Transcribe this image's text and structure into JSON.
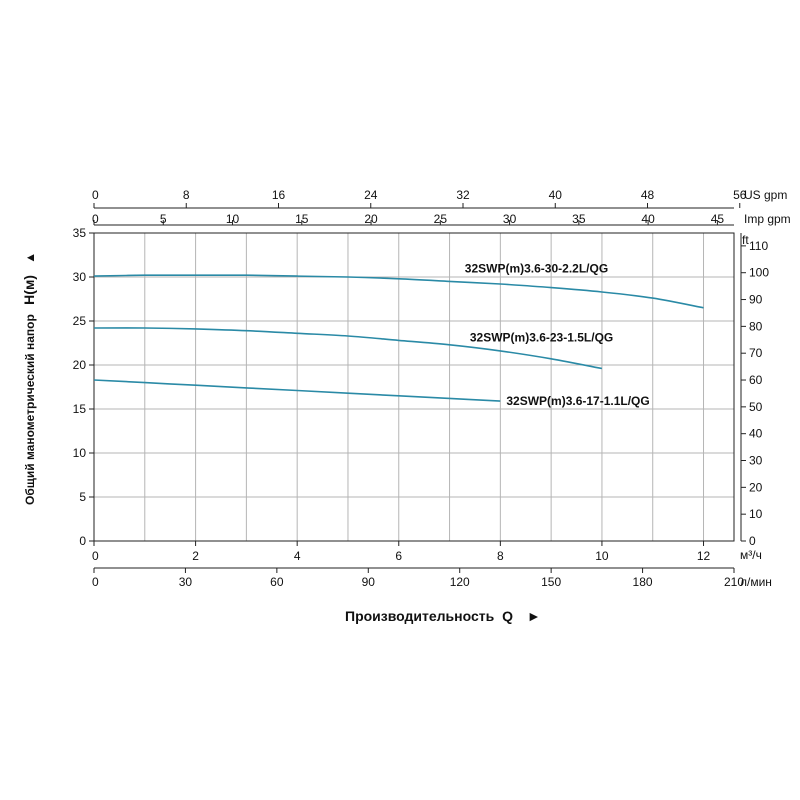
{
  "chart_data": {
    "type": "line",
    "y_axis": {
      "label_prefix": "Общий манометрический напор",
      "label_symbol": "H(м)",
      "arrow": "▲",
      "unit": "м",
      "range": [
        0,
        35
      ],
      "ticks": [
        0,
        5,
        10,
        15,
        20,
        25,
        30,
        35
      ]
    },
    "y_axis_secondary": {
      "unit": "ft",
      "range": [
        0,
        114.8
      ],
      "ticks": [
        0,
        10,
        20,
        30,
        40,
        50,
        60,
        70,
        80,
        90,
        100,
        110
      ]
    },
    "x_axis": {
      "label_prefix": "Производительность",
      "label_symbol": "Q",
      "arrow": "►",
      "unit": "м³/ч",
      "range": [
        0,
        12.6
      ],
      "ticks": [
        0,
        2,
        4,
        6,
        8,
        10,
        12
      ]
    },
    "x_axis_lmin": {
      "unit": "л/мин",
      "range": [
        0,
        210
      ],
      "ticks": [
        0,
        30,
        60,
        90,
        120,
        150,
        180,
        210
      ]
    },
    "x_axis_us_gpm": {
      "unit": "US gpm",
      "range": [
        0,
        55.5
      ],
      "ticks": [
        0,
        8,
        16,
        24,
        32,
        40,
        48,
        56
      ]
    },
    "x_axis_imp_gpm": {
      "unit": "Imp gpm",
      "range": [
        0,
        46.2
      ],
      "ticks": [
        0,
        5,
        10,
        15,
        20,
        25,
        30,
        35,
        40,
        45
      ]
    },
    "grid": true,
    "curve_color": "#2a8aa6",
    "series": [
      {
        "name": "32SWP(m)3.6-30-2.2L/QG",
        "x": [
          0,
          1,
          2,
          3,
          4,
          5,
          6,
          7,
          8,
          9,
          10,
          11,
          12
        ],
        "y": [
          30.1,
          30.2,
          30.2,
          30.2,
          30.1,
          30.0,
          29.8,
          29.5,
          29.2,
          28.8,
          28.3,
          27.6,
          26.5
        ]
      },
      {
        "name": "32SWP(m)3.6-23-1.5L/QG",
        "x": [
          0,
          1,
          2,
          3,
          4,
          5,
          6,
          7,
          8,
          9,
          10
        ],
        "y": [
          24.2,
          24.2,
          24.1,
          23.9,
          23.6,
          23.3,
          22.8,
          22.3,
          21.6,
          20.7,
          19.6
        ]
      },
      {
        "name": "32SWP(m)3.6-17-1.1L/QG",
        "x": [
          0,
          1,
          2,
          3,
          4,
          5,
          6,
          7,
          8
        ],
        "y": [
          18.3,
          18.0,
          17.7,
          17.4,
          17.1,
          16.8,
          16.5,
          16.2,
          15.9
        ]
      }
    ]
  }
}
